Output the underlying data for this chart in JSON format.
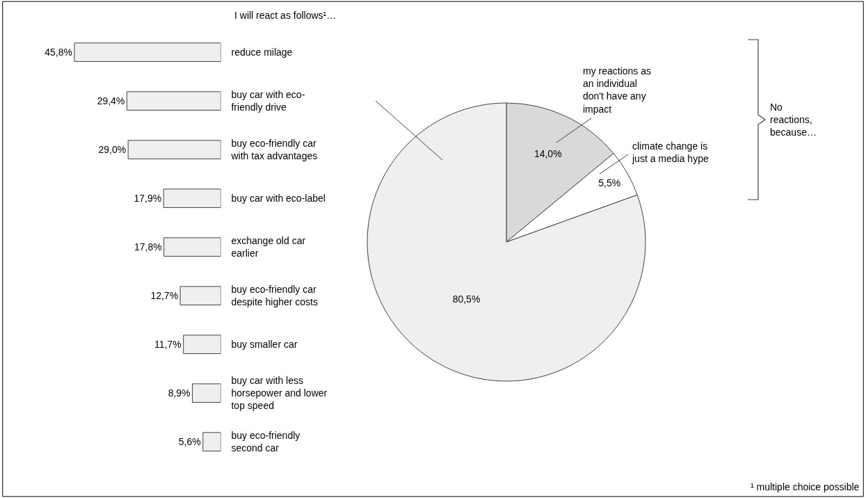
{
  "chart_data": [
    {
      "type": "bar",
      "orientation": "horizontal",
      "title": "I will react as follows¹…",
      "categories": [
        "reduce milage",
        "buy car with eco-friendly drive",
        "buy eco-friendly car with tax advantages",
        "buy car with eco-label",
        "exchange old car earlier",
        "buy eco-friendly car despite higher costs",
        "buy smaller car",
        "buy car with less horsepower and lower top speed",
        "buy eco-friendly second car"
      ],
      "values": [
        45.8,
        29.4,
        29.0,
        17.9,
        17.8,
        12.7,
        11.7,
        8.9,
        5.6
      ],
      "value_labels": [
        "45,8%",
        "29,4%",
        "29,0%",
        "17,9%",
        "17,8%",
        "12,7%",
        "11,7%",
        "8,9%",
        "5,6%"
      ],
      "color": "#efefef",
      "tick_labels": "y"
    },
    {
      "type": "pie",
      "categories": [
        "my reactions as an individual don't have any impact",
        "climate change is just a media hype",
        null
      ],
      "values": [
        14.0,
        5.5,
        80.5
      ],
      "value_labels": [
        "14,0%",
        "5,5%",
        "80,5%"
      ],
      "colors": [
        "#d9d9d9",
        "#ffffff",
        "#efefef"
      ],
      "annotations": [
        "No reactions, because…",
        "¹ multiple choice possible"
      ]
    }
  ]
}
